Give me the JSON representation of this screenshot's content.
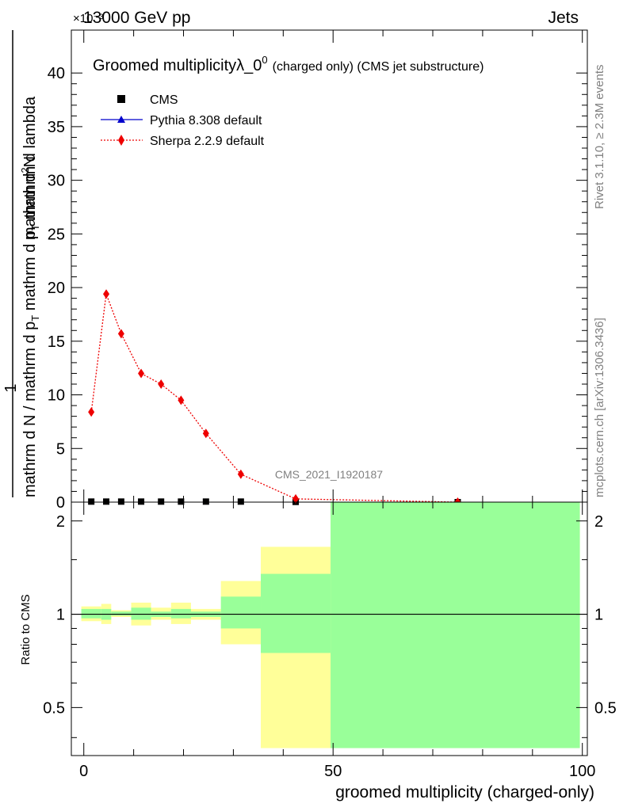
{
  "header": {
    "left_label": "13000 GeV pp",
    "right_label": "Jets",
    "exponent_label": "×10⁻³",
    "plot_title_main": "Groomed multiplicityλ_0",
    "plot_title_sup": "0",
    "plot_title_suffix": "(charged only) (CMS jet substructure)",
    "watermark": "CMS_2021_I1920187",
    "side_rivet": "Rivet 3.1.10, ≥ 2.3M events",
    "side_mcplots": "mcplots.cern.ch [arXiv:1306.3436]"
  },
  "axes": {
    "ylabel_numerator_top": "mathrm d",
    "ylabel_numerator_sup": "2",
    "ylabel_numerator_tail": "N",
    "ylabel_one": "1",
    "ylabel_denominator": "mathrm d N / mathrm d p",
    "ylabel_denominator_sub": "T",
    "ylabel_denominator_tail": " mathrm d p",
    "ylabel_denominator_sub2": "T",
    "ylabel_denominator_end": " mathrm d lambda",
    "ratio_ylabel": "Ratio to CMS",
    "xlabel": "groomed multiplicity (charged-only)"
  },
  "legend": [
    {
      "label": "CMS",
      "marker": "square",
      "color": "#000000"
    },
    {
      "label": "Pythia 8.308 default",
      "marker": "triangle",
      "color": "#0000cc"
    },
    {
      "label": "Sherpa 2.2.9 default",
      "marker": "diamond",
      "color": "#ee0000"
    }
  ],
  "chart_data": [
    {
      "type": "line",
      "panel": "main",
      "xlim": [
        -2.5,
        101
      ],
      "ylim": [
        0,
        44
      ],
      "y_scale_note": "values in units of 1e-3",
      "yticks": [
        0,
        5,
        10,
        15,
        20,
        25,
        30,
        35,
        40
      ],
      "ytick_labels": [
        "0",
        "5",
        "10",
        "15",
        "20",
        "25",
        "30",
        "35",
        "40"
      ],
      "x": [
        1.5,
        4.5,
        7.5,
        11.5,
        15.5,
        19.5,
        24.5,
        31.5,
        42.5,
        75
      ],
      "series": [
        {
          "name": "CMS",
          "values": [
            0.05,
            0.05,
            0.05,
            0.05,
            0.05,
            0.05,
            0.05,
            0.05,
            0.02,
            0.0
          ]
        },
        {
          "name": "Pythia 8.308 default",
          "values": [
            0.05,
            0.05,
            0.05,
            0.05,
            0.05,
            0.05,
            0.05,
            0.05,
            0.02,
            0.0
          ]
        },
        {
          "name": "Sherpa 2.2.9 default",
          "values": [
            8.4,
            19.4,
            15.7,
            12.0,
            11.0,
            9.5,
            6.4,
            2.6,
            0.3,
            0.0
          ]
        }
      ]
    },
    {
      "type": "area",
      "panel": "ratio",
      "xlim": [
        -2.5,
        101
      ],
      "ylim": [
        0.35,
        2.3
      ],
      "log_scale": true,
      "yticks": [
        0.5,
        1,
        2
      ],
      "ytick_labels": [
        "0.5",
        "1",
        "2"
      ],
      "xticks": [
        0,
        50,
        100
      ],
      "xtick_labels": [
        "0",
        "50",
        "100"
      ],
      "reference_line": 1,
      "bins": [
        {
          "lo": -0.5,
          "hi": 3.5,
          "yellow": [
            0.95,
            1.06
          ],
          "green": [
            0.97,
            1.04
          ]
        },
        {
          "lo": 3.5,
          "hi": 5.5,
          "yellow": [
            0.93,
            1.08
          ],
          "green": [
            0.96,
            1.04
          ]
        },
        {
          "lo": 5.5,
          "hi": 9.5,
          "yellow": [
            0.98,
            1.03
          ],
          "green": [
            0.99,
            1.02
          ]
        },
        {
          "lo": 9.5,
          "hi": 13.5,
          "yellow": [
            0.92,
            1.09
          ],
          "green": [
            0.96,
            1.05
          ]
        },
        {
          "lo": 13.5,
          "hi": 17.5,
          "yellow": [
            0.96,
            1.05
          ],
          "green": [
            0.98,
            1.02
          ]
        },
        {
          "lo": 17.5,
          "hi": 21.5,
          "yellow": [
            0.93,
            1.09
          ],
          "green": [
            0.97,
            1.04
          ]
        },
        {
          "lo": 21.5,
          "hi": 27.5,
          "yellow": [
            0.96,
            1.04
          ],
          "green": [
            0.98,
            1.02
          ]
        },
        {
          "lo": 27.5,
          "hi": 35.5,
          "yellow": [
            0.8,
            1.28
          ],
          "green": [
            0.9,
            1.14
          ]
        },
        {
          "lo": 35.5,
          "hi": 49.5,
          "yellow": [
            0.37,
            1.65
          ],
          "green": [
            0.75,
            1.35
          ]
        },
        {
          "lo": 49.5,
          "hi": 99.5,
          "yellow": [
            0.37,
            2.3
          ],
          "green": [
            0.37,
            2.3
          ]
        }
      ]
    }
  ]
}
